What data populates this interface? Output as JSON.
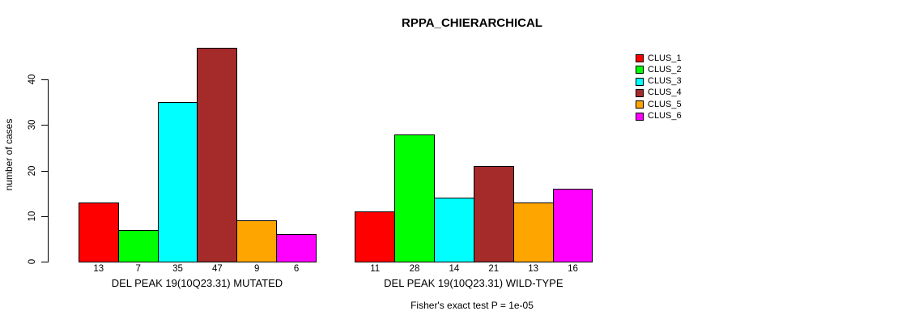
{
  "chart_data": {
    "type": "bar",
    "title": "RPPA_CHIERARCHICAL",
    "ylabel": "number of cases",
    "footnote": "Fisher's exact test P = 1e-05",
    "yticks": [
      0,
      10,
      20,
      30,
      40
    ],
    "ylim": [
      0,
      47
    ],
    "grid": false,
    "legend_position": "right",
    "legend": [
      {
        "label": "CLUS_1",
        "color": "#FF0000"
      },
      {
        "label": "CLUS_2",
        "color": "#00FF00"
      },
      {
        "label": "CLUS_3",
        "color": "#00FFFF"
      },
      {
        "label": "CLUS_4",
        "color": "#A52A2A"
      },
      {
        "label": "CLUS_5",
        "color": "#FFA500"
      },
      {
        "label": "CLUS_6",
        "color": "#FF00FF"
      }
    ],
    "groups": [
      {
        "label": "DEL PEAK 19(10Q23.31) MUTATED",
        "values": [
          13,
          7,
          35,
          47,
          9,
          6
        ]
      },
      {
        "label": "DEL PEAK 19(10Q23.31) WILD-TYPE",
        "values": [
          11,
          28,
          14,
          21,
          13,
          16
        ]
      }
    ]
  }
}
